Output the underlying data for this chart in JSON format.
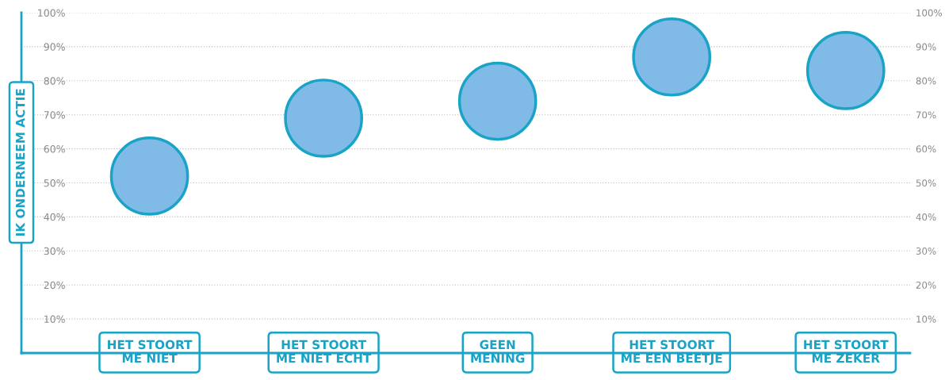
{
  "chart_data": {
    "type": "bubble",
    "ylabel": "IK ONDERNEEM ACTIE",
    "categories": [
      "HET STOORT\nME NIET",
      "HET STOORT\nME NIET ECHT",
      "GEEN\nMENING",
      "HET STOORT\nME EEN BEETJE",
      "HET STOORT\nME ZEKER"
    ],
    "series": [
      {
        "color": "#7fbbe6",
        "values": [
          52,
          69,
          74,
          87,
          83
        ],
        "sizes": [
          1,
          1,
          1,
          1,
          1
        ]
      }
    ],
    "ylim": [
      0,
      100
    ],
    "yticks": [
      {
        "value": 10,
        "label": "10%"
      },
      {
        "value": 20,
        "label": "20%"
      },
      {
        "value": 30,
        "label": "30%"
      },
      {
        "value": 40,
        "label": "40%"
      },
      {
        "value": 50,
        "label": "50%"
      },
      {
        "value": 60,
        "label": "60%"
      },
      {
        "value": 70,
        "label": "70%"
      },
      {
        "value": 80,
        "label": "80%"
      },
      {
        "value": 90,
        "label": "90%"
      },
      {
        "value": 100,
        "label": "100%"
      }
    ],
    "y2lim": [
      0,
      100
    ],
    "y2ticks": [
      {
        "value": 10,
        "label": "10%"
      },
      {
        "value": 20,
        "label": "20%"
      },
      {
        "value": 30,
        "label": "30%"
      },
      {
        "value": 40,
        "label": "40%"
      },
      {
        "value": 50,
        "label": "50%"
      },
      {
        "value": 60,
        "label": "60%"
      },
      {
        "value": 70,
        "label": "70%"
      },
      {
        "value": 80,
        "label": "80%"
      },
      {
        "value": 90,
        "label": "90%"
      },
      {
        "value": 100,
        "label": "100%"
      }
    ],
    "grid": "y"
  }
}
